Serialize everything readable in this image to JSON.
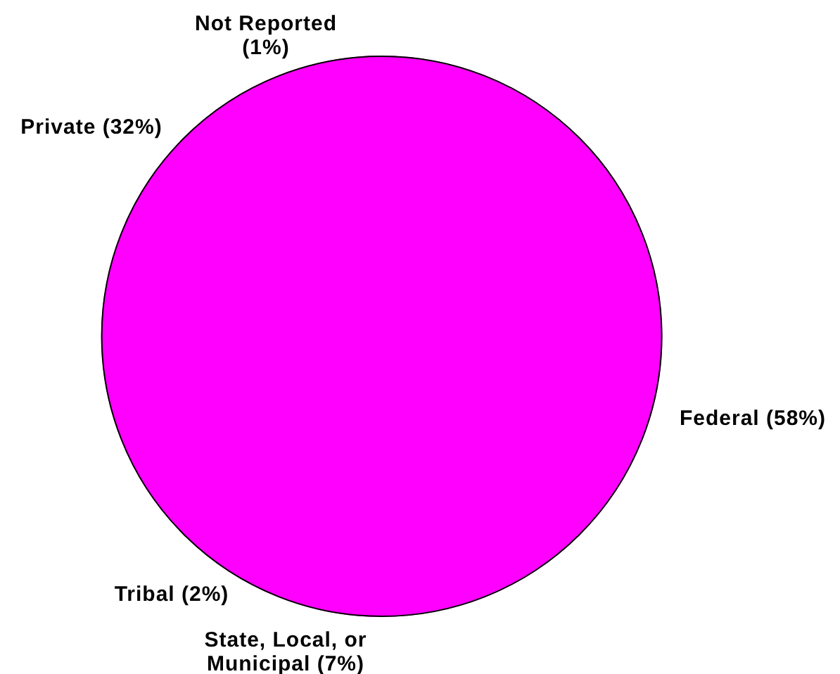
{
  "chart_data": {
    "type": "pie",
    "categories": [
      "Federal",
      "State, Local, or Municipal",
      "Tribal",
      "Private",
      "Not Reported"
    ],
    "values": [
      58,
      7,
      2,
      32,
      1
    ],
    "colors": [
      "#ff00ff",
      "#ff00ff",
      "#ff00ff",
      "#ff00ff",
      "#ff00ff"
    ],
    "value_labels": [
      "(58%)",
      "(7%)",
      "(2%)",
      "(32%)",
      "(1%)"
    ]
  }
}
